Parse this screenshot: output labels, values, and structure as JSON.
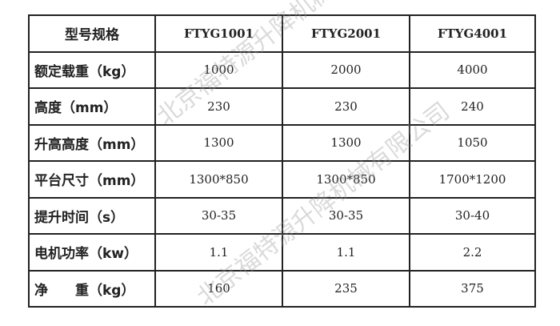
{
  "watermark": "北京福特源升降机械有限公司",
  "table": {
    "header": [
      "型号规格",
      "FTYG1001",
      "FTYG2001",
      "FTYG4001"
    ],
    "rows": [
      [
        "额定载重（kg）",
        "1000",
        "2000",
        "4000"
      ],
      [
        "高度（mm）",
        "230",
        "230",
        "240"
      ],
      [
        "升高高度（mm）",
        "1300",
        "1300",
        "1050"
      ],
      [
        "平台尺寸（mm）",
        "1300*850",
        "1300*850",
        "1700*1200"
      ],
      [
        "提升时间（s）",
        "30-35",
        "30-35",
        "30-40"
      ],
      [
        "电机功率（kw）",
        "1.1",
        "1.1",
        "2.2"
      ],
      [
        "净　　重（kg）",
        "160",
        "235",
        "375"
      ]
    ]
  }
}
